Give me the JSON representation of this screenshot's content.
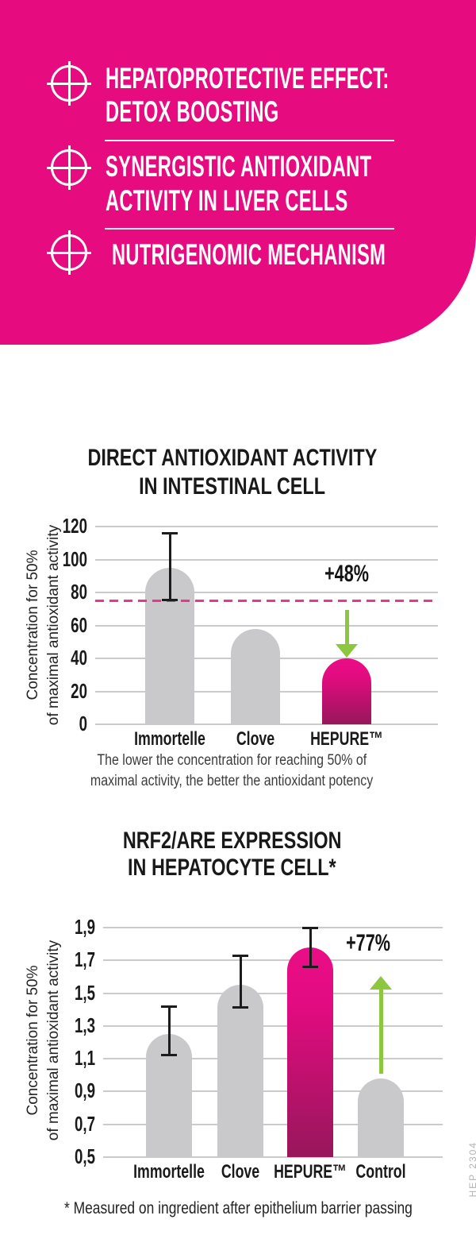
{
  "banner": {
    "bg_color": "#E60B7E",
    "items": [
      {
        "icon": "plus-circle-icon",
        "lines": [
          "HEPATOPROTECTIVE EFFECT:",
          "DETOX BOOSTING"
        ]
      },
      {
        "icon": "plus-circle-icon",
        "lines": [
          "SYNERGISTIC ANTIOXIDANT",
          "ACTIVITY IN LIVER CELLS"
        ]
      },
      {
        "icon": "plus-circle-icon",
        "lines": [
          "NUTRIGENOMIC MECHANISM"
        ]
      }
    ]
  },
  "chart_data": [
    {
      "type": "bar",
      "title_lines": [
        "DIRECT ANTIOXIDANT ACTIVITY",
        "IN INTESTINAL CELL"
      ],
      "ylabel_lines": [
        "Concentration for 50%",
        "of maximal antioxidant activity"
      ],
      "categories": [
        "Immortelle",
        "Clove",
        "HEPURE™"
      ],
      "values": [
        95,
        58,
        40
      ],
      "error_bars": [
        {
          "low": 75,
          "high": 116
        },
        null,
        null
      ],
      "ylim": [
        0,
        120
      ],
      "yticks": [
        0,
        20,
        40,
        60,
        80,
        100,
        120
      ],
      "ytick_labels": [
        "0",
        "20",
        "40",
        "60",
        "80",
        "100",
        "120"
      ],
      "grid": true,
      "highlight_index": 2,
      "threshold_line": {
        "value": 75,
        "style": "dashed"
      },
      "annotation": {
        "text": "+48%",
        "arrow": "down"
      },
      "caption_lines": [
        "The lower the concentration for reaching 50% of",
        "maximal activity, the better the antioxidant potency"
      ]
    },
    {
      "type": "bar",
      "title_lines": [
        "NRF2/ARE EXPRESSION",
        "IN HEPATOCYTE CELL*"
      ],
      "ylabel_lines": [
        "Concentration for 50%",
        "of maximal antioxidant activity"
      ],
      "categories": [
        "Immortelle",
        "Clove",
        "HEPURE™",
        "Control"
      ],
      "values": [
        1.25,
        1.55,
        1.78,
        0.98
      ],
      "error_bars": [
        {
          "low": 1.12,
          "high": 1.42
        },
        {
          "low": 1.41,
          "high": 1.73
        },
        {
          "low": 1.66,
          "high": 1.9
        },
        null
      ],
      "ylim": [
        0.5,
        1.9
      ],
      "yticks": [
        0.5,
        0.7,
        0.9,
        1.1,
        1.3,
        1.5,
        1.7,
        1.9
      ],
      "ytick_labels": [
        "0,5",
        "0,7",
        "0,9",
        "1,1",
        "1,3",
        "1,5",
        "1,7",
        "1,9"
      ],
      "grid": true,
      "highlight_index": 2,
      "annotation": {
        "text": "+77%",
        "arrow": "up"
      },
      "footnote": "* Measured on ingredient after epithelium barrier passing"
    }
  ],
  "side_text": "HEP 2304",
  "colors": {
    "accent_pink": "#E60B7E",
    "bar_gray": "#C9C9CB",
    "highlight_gradient_top": "#EA0E86",
    "highlight_gradient_bottom": "#97175B",
    "arrow_green": "#8DC63F",
    "dashed_line_pink": "#E43A8E",
    "gridline_gray": "#CBCBCB",
    "text_black": "#1A1A1A"
  }
}
